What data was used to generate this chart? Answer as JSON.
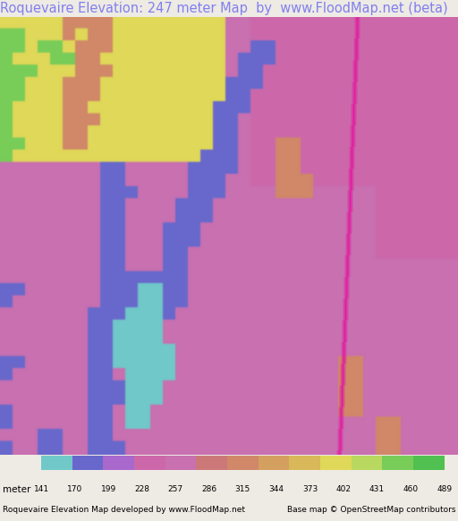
{
  "title": "Roquevaire Elevation: 247 meter Map  by  www.FloodMap.net (beta)",
  "title_color": "#8080ee",
  "title_fontsize": 10.5,
  "background_color": "#eeeae4",
  "colorbar_values": [
    141,
    170,
    199,
    228,
    257,
    286,
    315,
    344,
    373,
    402,
    431,
    460,
    489
  ],
  "colorbar_colors": [
    "#70c8c8",
    "#6868cc",
    "#a868cc",
    "#cc68aa",
    "#c870b0",
    "#cc7878",
    "#d08868",
    "#d4a060",
    "#d8b858",
    "#e0d858",
    "#b8d860",
    "#78cc58",
    "#50c050"
  ],
  "footer_left": "Roquevaire Elevation Map developed by www.FloodMap.net",
  "footer_right": "Base map © OpenStreetMap contributors",
  "footer_fontsize": 6.5,
  "colorbar_label": "meter",
  "colorbar_label_fontsize": 7.5,
  "colorbar_tick_fontsize": 6.5,
  "map_colors": {
    "pink_mauve": "#c880c0",
    "blue_valley": "#6870c8",
    "teal_low": "#70c8c8",
    "green_high": "#80cc50",
    "yellow_high": "#d8d858",
    "orange_mid": "#cc8858",
    "red_orange": "#cc6858",
    "purple_mid": "#a868cc"
  },
  "block_size": 14
}
